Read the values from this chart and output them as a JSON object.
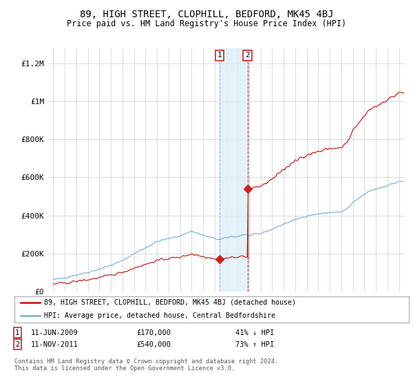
{
  "title": "89, HIGH STREET, CLOPHILL, BEDFORD, MK45 4BJ",
  "subtitle": "Price paid vs. HM Land Registry's House Price Index (HPI)",
  "ylabel_ticks": [
    "£0",
    "£200K",
    "£400K",
    "£600K",
    "£800K",
    "£1M",
    "£1.2M"
  ],
  "ytick_values": [
    0,
    200000,
    400000,
    600000,
    800000,
    1000000,
    1200000
  ],
  "ylim": [
    0,
    1280000
  ],
  "xlim_start": 1994.5,
  "xlim_end": 2025.5,
  "hpi_color": "#7ab4d8",
  "price_color": "#cc2222",
  "transaction1_date": 2009.44,
  "transaction1_price": 170000,
  "transaction2_date": 2011.86,
  "transaction2_price": 540000,
  "shade_color": "#ddeef8",
  "vline1_color": "#aaaacc",
  "vline2_color": "#cc2222",
  "background_color": "#ffffff",
  "grid_color": "#cccccc",
  "legend_line1": "89, HIGH STREET, CLOPHILL, BEDFORD, MK45 4BJ (detached house)",
  "legend_line2": "HPI: Average price, detached house, Central Bedfordshire",
  "table_row1_date": "11-JUN-2009",
  "table_row1_price": "£170,000",
  "table_row1_hpi": "41% ↓ HPI",
  "table_row2_date": "11-NOV-2011",
  "table_row2_price": "£540,000",
  "table_row2_hpi": "73% ↑ HPI",
  "footnote": "Contains HM Land Registry data © Crown copyright and database right 2024.\nThis data is licensed under the Open Government Licence v3.0."
}
